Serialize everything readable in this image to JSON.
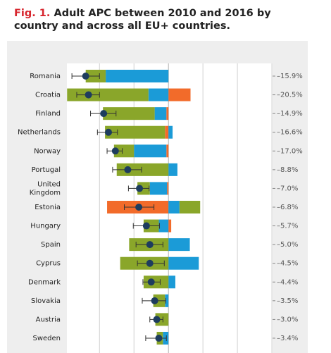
{
  "chart_data": {
    "type": "diverging-stacked-bar",
    "figure_label": "Fig. 1.",
    "title": "Adult APC between 2010 and 2016 by country and across all EU+ countries.",
    "categories": [
      "Romania",
      "Croatia",
      "Finland",
      "Netherlands",
      "Norway",
      "Portugal",
      "United Kingdom",
      "Estonia",
      "Hungary",
      "Spain",
      "Cyprus",
      "Denmark",
      "Slovakia",
      "Austria",
      "Sweden"
    ],
    "series": [
      {
        "color": "#f26b2a",
        "values": [
          0,
          3.2,
          -0.3,
          -0.5,
          -0.3,
          0,
          -0.2,
          -8.9,
          0.4,
          0,
          0,
          0,
          0,
          0,
          0
        ]
      },
      {
        "color": "#1b9bd7",
        "values": [
          -9.1,
          -2.9,
          -1.7,
          0.6,
          -4.7,
          1.3,
          -2.5,
          1.6,
          -1.4,
          3.1,
          4.4,
          1.0,
          -0.5,
          0,
          -0.8
        ]
      },
      {
        "color": "#8aa62a",
        "values": [
          -2.9,
          -11.8,
          -7.5,
          -8.7,
          -2.9,
          -7.5,
          -1.8,
          3.0,
          -2.2,
          -5.7,
          -7.0,
          -3.6,
          -1.7,
          -1.9,
          -0.9
        ]
      }
    ],
    "points": {
      "color": "#1d3c5e",
      "values": [
        -12.0,
        -11.6,
        -9.4,
        -8.7,
        -7.7,
        -5.9,
        -4.2,
        -4.3,
        -3.2,
        -2.7,
        -2.7,
        -2.5,
        -2.0,
        -1.7,
        -1.4
      ],
      "lower": [
        -14.0,
        -13.3,
        -11.3,
        -10.3,
        -8.9,
        -8.1,
        -5.8,
        -6.4,
        -5.1,
        -4.7,
        -4.5,
        -3.7,
        -3.8,
        -2.7,
        -3.3
      ],
      "upper": [
        -10.0,
        -10.0,
        -7.6,
        -7.4,
        -6.7,
        -3.9,
        -2.8,
        -2.1,
        -1.3,
        -0.8,
        -0.6,
        -1.2,
        -0.4,
        -0.8,
        -0.3
      ]
    },
    "totals": {
      "values": [
        -15.9,
        -20.5,
        -14.9,
        -16.6,
        -17.0,
        -8.8,
        -7.0,
        -6.8,
        -5.7,
        -5.0,
        -4.5,
        -4.4,
        -3.5,
        -3.0,
        -3.4
      ],
      "value_labels": [
        "–15.9%",
        "–20.5%",
        "–14.9%",
        "–16.6%",
        "–17.0%",
        "–8.8%",
        "–7.0%",
        "–6.8%",
        "–5.7%",
        "–5.0%",
        "–4.5%",
        "–4.4%",
        "–3.5%",
        "–3.0%",
        "–3.4%"
      ]
    },
    "xlim": [
      -23,
      20
    ],
    "xgrid": [
      -10,
      -5,
      0,
      5,
      10,
      15
    ]
  }
}
